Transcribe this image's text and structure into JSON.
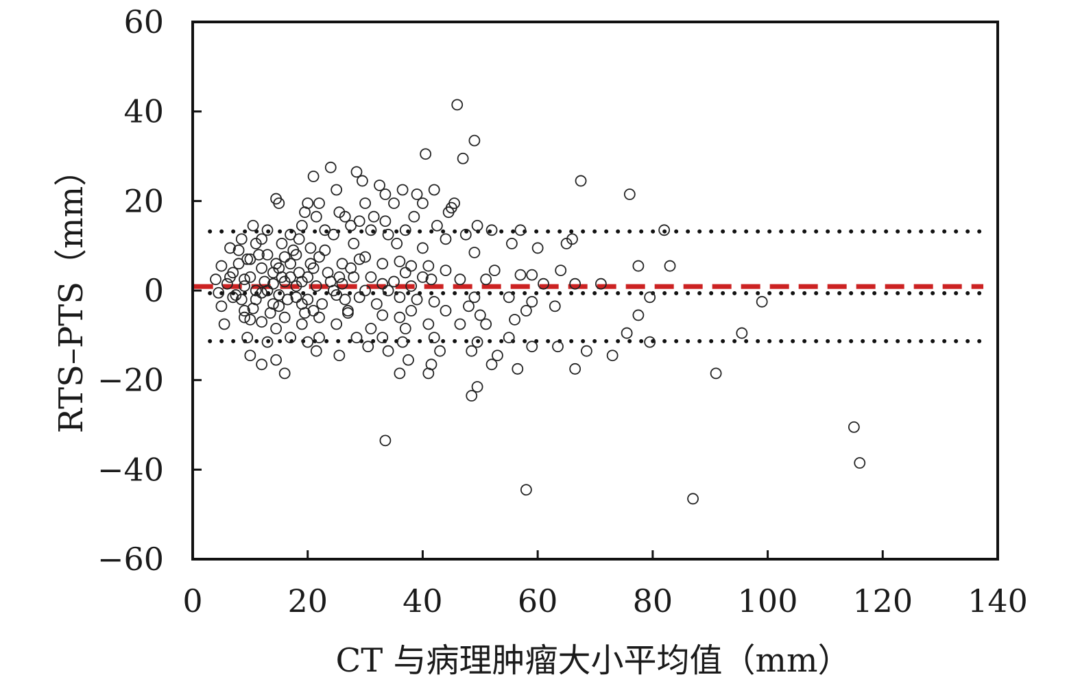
{
  "chart_data": {
    "type": "scatter",
    "title": "",
    "xlabel": "CT 与病理肿瘤大小平均值（mm）",
    "ylabel": "RTS–PTS（mm）",
    "xlim": [
      0,
      140
    ],
    "ylim": [
      -60,
      60
    ],
    "xticks": [
      0,
      20,
      40,
      60,
      80,
      100,
      120,
      140
    ],
    "yticks": [
      60,
      40,
      20,
      0,
      -20,
      -40,
      -60
    ],
    "ytick_labels": [
      "60",
      "40",
      "20",
      "0",
      "−20",
      "−40",
      "−60"
    ],
    "grid": false,
    "legend": "none",
    "reference_lines": [
      {
        "kind": "mean-bias",
        "y": 0.9,
        "style": "dashed",
        "color": "#cc2222"
      },
      {
        "kind": "upper-limit",
        "y": 13.2,
        "style": "dotted",
        "color": "#111111"
      },
      {
        "kind": "lower-limit",
        "y": -11.3,
        "style": "dotted",
        "color": "#111111"
      },
      {
        "kind": "zero",
        "y": -0.6,
        "style": "dotted",
        "color": "#111111"
      }
    ],
    "series": [
      {
        "marker": "open-circle",
        "color": "#222222",
        "points": [
          [
            46,
            41.5
          ],
          [
            49,
            33.5
          ],
          [
            40.5,
            30.5
          ],
          [
            47,
            29.5
          ],
          [
            24,
            27.5
          ],
          [
            28.5,
            26.5
          ],
          [
            21,
            25.5
          ],
          [
            29.5,
            24.5
          ],
          [
            32.5,
            23.5
          ],
          [
            36.5,
            22.5
          ],
          [
            42,
            22.5
          ],
          [
            25,
            22.5
          ],
          [
            33.5,
            21.5
          ],
          [
            39,
            21.5
          ],
          [
            14.5,
            20.5
          ],
          [
            15,
            19.5
          ],
          [
            20,
            19.5
          ],
          [
            22,
            19.5
          ],
          [
            35,
            19.5
          ],
          [
            40,
            19.5
          ],
          [
            45.5,
            19.5
          ],
          [
            30,
            19.5
          ],
          [
            45,
            18.5
          ],
          [
            19.5,
            17.5
          ],
          [
            25.5,
            17.5
          ],
          [
            31.5,
            16.5
          ],
          [
            38.5,
            16.5
          ],
          [
            44.5,
            17.5
          ],
          [
            26.5,
            16.5
          ],
          [
            21.5,
            16.5
          ],
          [
            10.5,
            14.5
          ],
          [
            19,
            14.5
          ],
          [
            29,
            15.5
          ],
          [
            33.5,
            15.5
          ],
          [
            42.5,
            14.5
          ],
          [
            49.5,
            14.5
          ],
          [
            13,
            13.5
          ],
          [
            17,
            12.5
          ],
          [
            23,
            13.5
          ],
          [
            27.5,
            14.5
          ],
          [
            31,
            13.5
          ],
          [
            37,
            13.5
          ],
          [
            52,
            13.5
          ],
          [
            57,
            13.5
          ],
          [
            82,
            13.5
          ],
          [
            8.5,
            11.5
          ],
          [
            12,
            11.5
          ],
          [
            18.5,
            11.5
          ],
          [
            24.5,
            12.5
          ],
          [
            34,
            12.5
          ],
          [
            44,
            11.5
          ],
          [
            47.5,
            12.5
          ],
          [
            66,
            11.5
          ],
          [
            6.5,
            9.5
          ],
          [
            11,
            10.5
          ],
          [
            15.5,
            10.5
          ],
          [
            20.5,
            9.5
          ],
          [
            28,
            10.5
          ],
          [
            35.5,
            10.5
          ],
          [
            40,
            9.5
          ],
          [
            55.5,
            10.5
          ],
          [
            60,
            9.5
          ],
          [
            65,
            10.5
          ],
          [
            49,
            8.5
          ],
          [
            5,
            5.5
          ],
          [
            16,
            7.5
          ],
          [
            22,
            7.5
          ],
          [
            30,
            7.5
          ],
          [
            36,
            6.5
          ],
          [
            38,
            5.5
          ],
          [
            41,
            5.5
          ],
          [
            44,
            4.5
          ],
          [
            52.5,
            4.5
          ],
          [
            77.5,
            5.5
          ],
          [
            83,
            5.5
          ],
          [
            64,
            4.5
          ],
          [
            57,
            3.5
          ],
          [
            59,
            3.5
          ],
          [
            41.5,
            2.5
          ],
          [
            46.5,
            2.5
          ],
          [
            51,
            2.5
          ],
          [
            61,
            1.5
          ],
          [
            66.5,
            1.5
          ],
          [
            71,
            1.5
          ],
          [
            4,
            2.5
          ],
          [
            6,
            1.5
          ],
          [
            9,
            2.5
          ],
          [
            14,
            1.5
          ],
          [
            26,
            1.5
          ],
          [
            33,
            1.5
          ],
          [
            4.5,
            -0.5
          ],
          [
            7,
            -1.5
          ],
          [
            12,
            -0.5
          ],
          [
            18,
            -1.5
          ],
          [
            29,
            -1.5
          ],
          [
            36,
            -1.5
          ],
          [
            42,
            -2.5
          ],
          [
            49,
            -1.5
          ],
          [
            55,
            -1.5
          ],
          [
            59,
            -2.5
          ],
          [
            79.5,
            -1.5
          ],
          [
            99,
            -2.5
          ],
          [
            5,
            -3.5
          ],
          [
            9,
            -4.5
          ],
          [
            15,
            -3.5
          ],
          [
            21,
            -4.5
          ],
          [
            27,
            -4.5
          ],
          [
            33,
            -5.5
          ],
          [
            38,
            -4.5
          ],
          [
            44,
            -4.5
          ],
          [
            50,
            -5.5
          ],
          [
            58,
            -4.5
          ],
          [
            63,
            -3.5
          ],
          [
            48,
            -3.5
          ],
          [
            77.5,
            -5.5
          ],
          [
            5.5,
            -7.5
          ],
          [
            10,
            -6.5
          ],
          [
            14.5,
            -8.5
          ],
          [
            19,
            -7.5
          ],
          [
            25,
            -7.5
          ],
          [
            31,
            -8.5
          ],
          [
            37,
            -8.5
          ],
          [
            41,
            -7.5
          ],
          [
            46.5,
            -7.5
          ],
          [
            51,
            -7.5
          ],
          [
            56,
            -6.5
          ],
          [
            75.5,
            -9.5
          ],
          [
            95.5,
            -9.5
          ],
          [
            9.5,
            -10.5
          ],
          [
            13,
            -11.5
          ],
          [
            17,
            -10.5
          ],
          [
            20,
            -11.5
          ],
          [
            22,
            -10.5
          ],
          [
            28.5,
            -10.5
          ],
          [
            33,
            -10.5
          ],
          [
            36.5,
            -11.5
          ],
          [
            42,
            -10.5
          ],
          [
            49.5,
            -11.5
          ],
          [
            55,
            -10.5
          ],
          [
            79.5,
            -11.5
          ],
          [
            30.5,
            -12.5
          ],
          [
            34,
            -13.5
          ],
          [
            43,
            -13.5
          ],
          [
            48.5,
            -13.5
          ],
          [
            53,
            -14.5
          ],
          [
            59,
            -12.5
          ],
          [
            63.5,
            -12.5
          ],
          [
            68.5,
            -13.5
          ],
          [
            73,
            -14.5
          ],
          [
            10,
            -14.5
          ],
          [
            14.5,
            -15.5
          ],
          [
            21.5,
            -13.5
          ],
          [
            25.5,
            -14.5
          ],
          [
            37.5,
            -15.5
          ],
          [
            41.5,
            -16.5
          ],
          [
            52,
            -16.5
          ],
          [
            12,
            -16.5
          ],
          [
            16,
            -18.5
          ],
          [
            36,
            -18.5
          ],
          [
            41,
            -18.5
          ],
          [
            56.5,
            -17.5
          ],
          [
            66.5,
            -17.5
          ],
          [
            91,
            -18.5
          ],
          [
            49.5,
            -21.5
          ],
          [
            48.5,
            -23.5
          ],
          [
            67.5,
            24.5
          ],
          [
            76,
            21.5
          ],
          [
            33.5,
            -33.5
          ],
          [
            115,
            -30.5
          ],
          [
            116,
            -38.5
          ],
          [
            58,
            -44.5
          ],
          [
            87,
            -46.5
          ],
          [
            7,
            4
          ],
          [
            8,
            6
          ],
          [
            9,
            1
          ],
          [
            10,
            3
          ],
          [
            11,
            -2
          ],
          [
            12,
            5
          ],
          [
            13,
            0
          ],
          [
            14,
            4
          ],
          [
            15,
            -1
          ],
          [
            16,
            2
          ],
          [
            17,
            6
          ],
          [
            18,
            1
          ],
          [
            19,
            -3
          ],
          [
            20,
            3
          ],
          [
            8.5,
            -2
          ],
          [
            9.5,
            7
          ],
          [
            10.5,
            -4
          ],
          [
            11.5,
            8
          ],
          [
            12.5,
            2
          ],
          [
            13.5,
            -5
          ],
          [
            14.5,
            6
          ],
          [
            15.5,
            3
          ],
          [
            16.5,
            -2
          ],
          [
            17.5,
            9
          ],
          [
            18.5,
            4
          ],
          [
            19.5,
            -5
          ],
          [
            20.5,
            6
          ],
          [
            21.5,
            1
          ],
          [
            22.5,
            -3
          ],
          [
            23.5,
            4
          ],
          [
            24.5,
            0
          ],
          [
            25.5,
            3
          ],
          [
            26.5,
            -2
          ],
          [
            27.5,
            5
          ],
          [
            6.5,
            3
          ],
          [
            7.5,
            -1
          ],
          [
            8,
            9
          ],
          [
            9,
            -6
          ],
          [
            10,
            7
          ],
          [
            11,
            0
          ],
          [
            12,
            -7
          ],
          [
            13,
            8
          ],
          [
            14,
            -3
          ],
          [
            15,
            5
          ],
          [
            16,
            -6
          ],
          [
            17,
            3
          ],
          [
            18,
            8
          ],
          [
            19,
            2
          ],
          [
            20,
            -2
          ],
          [
            21,
            5
          ],
          [
            22,
            -6
          ],
          [
            23,
            9
          ],
          [
            24,
            2
          ],
          [
            25,
            -1
          ],
          [
            26,
            6
          ],
          [
            27,
            -5
          ],
          [
            28,
            3
          ],
          [
            29,
            7
          ],
          [
            30,
            0
          ],
          [
            31,
            3
          ],
          [
            32,
            -3
          ],
          [
            33,
            6
          ],
          [
            34,
            0
          ],
          [
            35,
            2
          ],
          [
            36,
            -6
          ],
          [
            37,
            4
          ],
          [
            38,
            1
          ],
          [
            39,
            -2
          ],
          [
            40,
            3
          ]
        ]
      }
    ]
  }
}
